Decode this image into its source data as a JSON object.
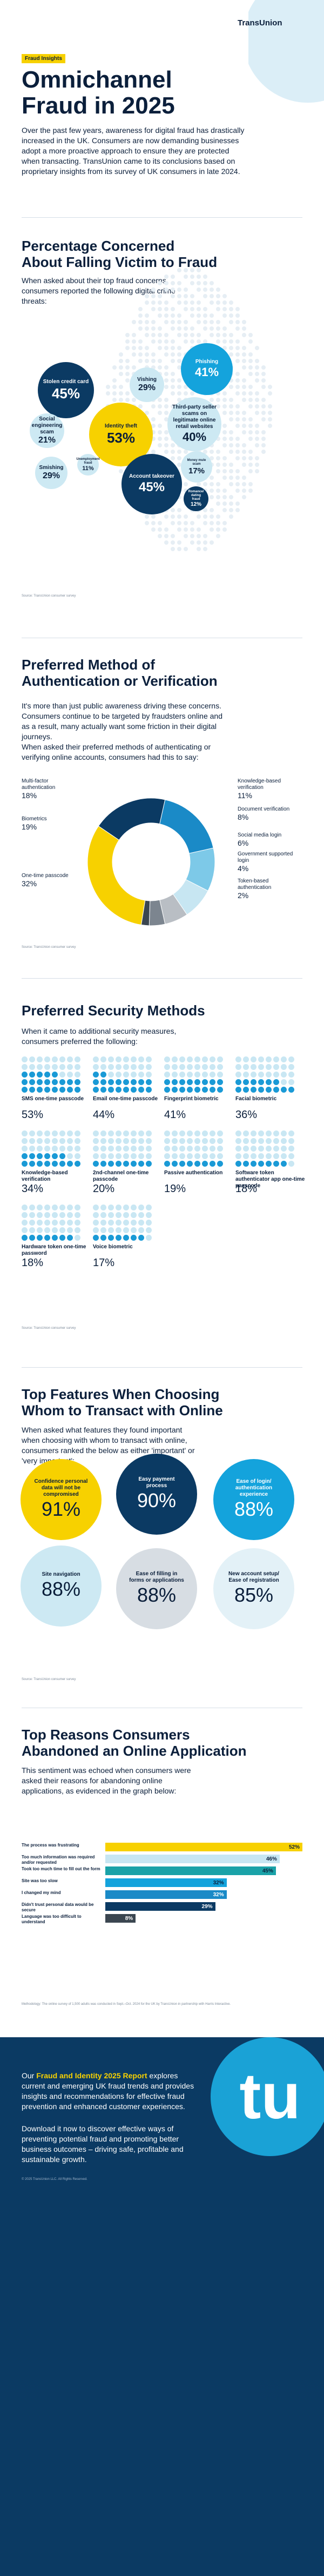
{
  "brand": {
    "name": "TransUnion",
    "tag": "Fraud Insights"
  },
  "hero": {
    "title_line1": "Omnichannel",
    "title_line2": "Fraud in 2025",
    "intro": "Over the past few years, awareness for digital fraud has drastically increased in the UK. Consumers are now demanding businesses adopt a more proactive approach to ensure they are protected when transacting. TransUnion came to its conclusions based on proprietary insights from its survey of UK consumers in late 2024."
  },
  "concern": {
    "title_line1": "Percentage Concerned",
    "title_line2": "About Falling Victim to Fraud",
    "intro": "When asked about their top fraud concerns, consumers reported the following digital crime threats:",
    "source": "Source: TransUnion consumer survey",
    "bubbles": [
      {
        "label": "Stolen credit card",
        "value": "45%",
        "color": "navy"
      },
      {
        "label": "Vishing",
        "value": "29%",
        "color": "light"
      },
      {
        "label": "Phishing",
        "value": "41%",
        "color": "teal"
      },
      {
        "label": "Social engineering scam",
        "value": "21%",
        "color": "light"
      },
      {
        "label": "Identity theft",
        "value": "53%",
        "color": "yellow"
      },
      {
        "label": "Third-party seller scams on legitimate online retail websites",
        "value": "40%",
        "color": "light"
      },
      {
        "label": "Smishing",
        "value": "29%",
        "color": "light"
      },
      {
        "label": "Unemployment fraud",
        "value": "11%",
        "color": "light"
      },
      {
        "label": "Account takeover",
        "value": "45%",
        "color": "navy"
      },
      {
        "label": "Money mule scam",
        "value": "17%",
        "color": "light"
      },
      {
        "label": "Romance/ dating fraud",
        "value": "12%",
        "color": "navy"
      }
    ]
  },
  "auth": {
    "title_line1": "Preferred Method of",
    "title_line2": "Authentication or Verification",
    "intro1": "It's more than just public awareness driving these concerns. Consumers continue to be targeted by fraudsters online and as a result, many actually want some friction in their digital journeys.",
    "intro2": "When asked their preferred methods of authenticating or verifying online accounts, consumers had this to say:",
    "source": "Source: TransUnion consumer survey",
    "left": [
      {
        "label": "Multi-factor authentication",
        "value": "18%"
      },
      {
        "label": "Biometrics",
        "value": "19%"
      },
      {
        "label": "One-time passcode",
        "value": "32%"
      }
    ],
    "right": [
      {
        "label": "Knowledge-based verification",
        "value": "11%"
      },
      {
        "label": "Document verification",
        "value": "8%"
      },
      {
        "label": "Social media login",
        "value": "6%"
      },
      {
        "label": "Government supported login",
        "value": "4%"
      },
      {
        "label": "Token-based authentication",
        "value": "2%"
      }
    ]
  },
  "chart_data": {
    "type": "pie",
    "categories": [
      "One-time passcode",
      "Biometrics",
      "Multi-factor authentication",
      "Knowledge-based verification",
      "Document verification",
      "Social media login",
      "Government supported login",
      "Token-based authentication"
    ],
    "values": [
      32,
      19,
      18,
      11,
      8,
      6,
      4,
      2
    ],
    "colors": [
      "#f7d100",
      "#0b3a63",
      "#1a8ac7",
      "#7dc9e8",
      "#c7e6f2",
      "#b9bec4",
      "#7c858f",
      "#3b4650"
    ],
    "donut": true
  },
  "security": {
    "title": "Preferred Security Methods",
    "intro": "When it came to additional security measures, consumers preferred the following:",
    "source": "Source: TransUnion consumer survey",
    "methods": [
      {
        "label": "SMS one-time passcode",
        "value": "53%",
        "fraction": 0.53
      },
      {
        "label": "Email one-time passcode",
        "value": "44%",
        "fraction": 0.44
      },
      {
        "label": "Fingerprint biometric",
        "value": "41%",
        "fraction": 0.41
      },
      {
        "label": "Facial biometric",
        "value": "36%",
        "fraction": 0.36
      },
      {
        "label": "Knowledge-based verification",
        "value": "34%",
        "fraction": 0.34
      },
      {
        "label": "2nd-channel one-time passcode",
        "value": "20%",
        "fraction": 0.2
      },
      {
        "label": "Passive authentication",
        "value": "19%",
        "fraction": 0.19
      },
      {
        "label": "Software token authenticator app one-time passcode",
        "value": "18%",
        "fraction": 0.18
      },
      {
        "label": "Hardware token one-time password",
        "value": "18%",
        "fraction": 0.18
      },
      {
        "label": "Voice biometric",
        "value": "17%",
        "fraction": 0.17
      }
    ]
  },
  "features": {
    "title_line1": "Top Features When Choosing",
    "title_line2": "Whom to Transact with Online",
    "intro": "When asked what features they found important when choosing with whom to transact with online, consumers ranked the below as either 'important' or 'very important':",
    "source": "Source: TransUnion consumer survey",
    "items": [
      {
        "label": "Confidence personal data will not be compromised",
        "value": "91%",
        "color": "yellow"
      },
      {
        "label": "Easy payment process",
        "value": "90%",
        "color": "navy"
      },
      {
        "label": "Ease of login/ authentication experience",
        "value": "88%",
        "color": "teal"
      },
      {
        "label": "Site navigation",
        "value": "88%",
        "color": "light"
      },
      {
        "label": "Ease of filling in forms or applications",
        "value": "88%",
        "color": "grey"
      },
      {
        "label": "New account setup/ Ease of registration",
        "value": "85%",
        "color": "pale"
      }
    ]
  },
  "abandon": {
    "title_line1": "Top Reasons Consumers",
    "title_line2": "Abandoned an Online Application",
    "intro": "This sentiment was echoed when consumers were asked their reasons for abandoning online applications, as evidenced in the graph below:",
    "source": "Methodology: The online survey of 1,500 adults was conducted in Sept.–Oct. 2024 for the UK by TransUnion in partnership with Harris Interactive.",
    "bars": [
      {
        "label": "The process was frustrating",
        "value": "52%",
        "pct": 52,
        "color": "#f7d100"
      },
      {
        "label": "Too much information was required and/or requested",
        "value": "46%",
        "pct": 46,
        "color": "#c7e6f2"
      },
      {
        "label": "Took too much time to fill out the form",
        "value": "45%",
        "pct": 45,
        "color": "#1aa2a8"
      },
      {
        "label": "Site was too slow",
        "value": "32%",
        "pct": 32,
        "color": "#14a3dc"
      },
      {
        "label": "I changed my mind",
        "value": "32%",
        "pct": 32,
        "color": "#1a8ac7"
      },
      {
        "label": "Didn't trust personal data would be secure",
        "value": "29%",
        "pct": 29,
        "color": "#0b3a63"
      },
      {
        "label": "Language was too difficult to understand",
        "value": "8%",
        "pct": 8,
        "color": "#3b4650"
      }
    ]
  },
  "footer": {
    "p1_prefix": "Our",
    "p1_link": "Fraud and Identity 2025 Report",
    "p1_suffix": "explores current and emerging UK fraud trends and provides insights and recommendations for effective fraud prevention and enhanced customer experiences.",
    "p2": "Download it now to discover effective ways of preventing potential fraud and promoting better business outcomes – driving safe, profitable and sustainable growth.",
    "legal": "© 2025 TransUnion LLC. All Rights Reserved."
  }
}
